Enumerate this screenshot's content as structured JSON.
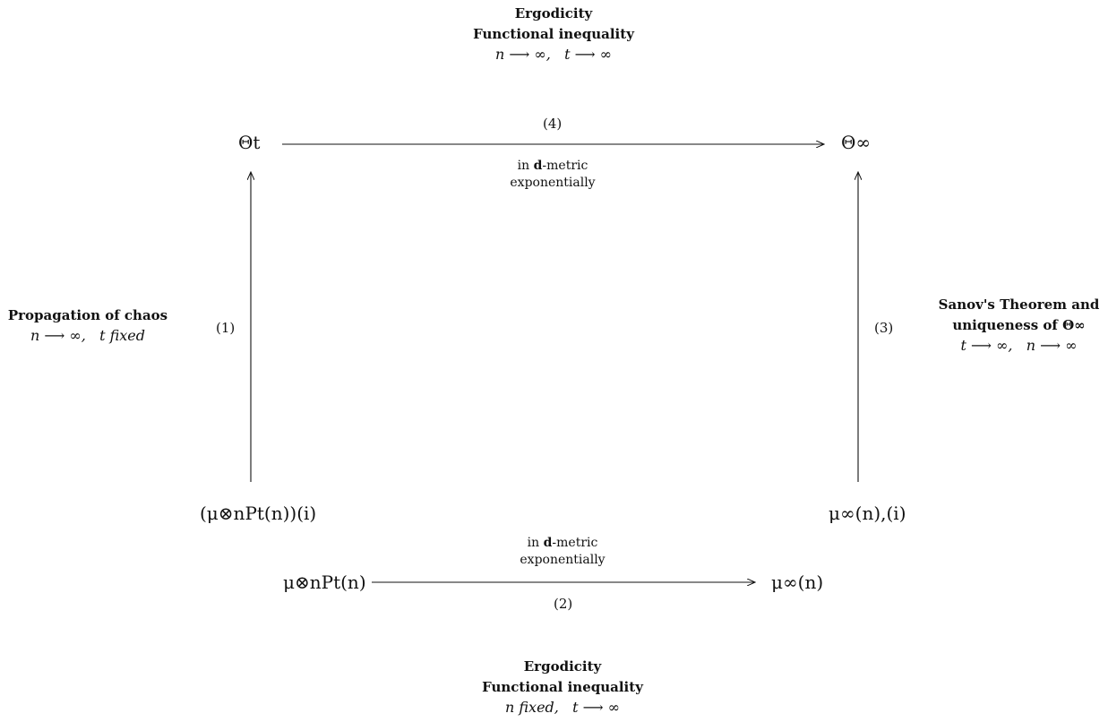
{
  "top_label": {
    "line1": "Ergodicity",
    "line2": "Functional inequality",
    "cond_a": "n ⟶ ∞,",
    "cond_b": "t ⟶ ∞"
  },
  "bottom_label": {
    "line1": "Ergodicity",
    "line2": "Functional inequality",
    "cond_a": "n fixed,",
    "cond_b": "t ⟶ ∞"
  },
  "left_label": {
    "line1": "Propagation of chaos",
    "cond_a": "n ⟶ ∞,",
    "cond_b": "t fixed"
  },
  "right_label": {
    "line1": "Sanov's Theorem and",
    "line2": "uniqueness of Θ∞",
    "cond_a": "t ⟶ ∞,",
    "cond_b": "n ⟶ ∞"
  },
  "nodes": {
    "theta_t": "Θt",
    "theta_inf": "Θ∞",
    "mu_marginal": "(μ⊗nPt(n))(i)",
    "mu_inf_marginal": "μ∞(n),(i)",
    "mu_product": "μ⊗nPt(n)",
    "mu_inf": "μ∞(n)"
  },
  "edges": {
    "e1": "(1)",
    "e2": "(2)",
    "e3": "(3)",
    "e4": "(4)",
    "metric_top": "in d-metric",
    "metric_top_2": "exponentially",
    "metric_bottom": "in d-metric",
    "metric_bottom_2": "exponentially"
  }
}
